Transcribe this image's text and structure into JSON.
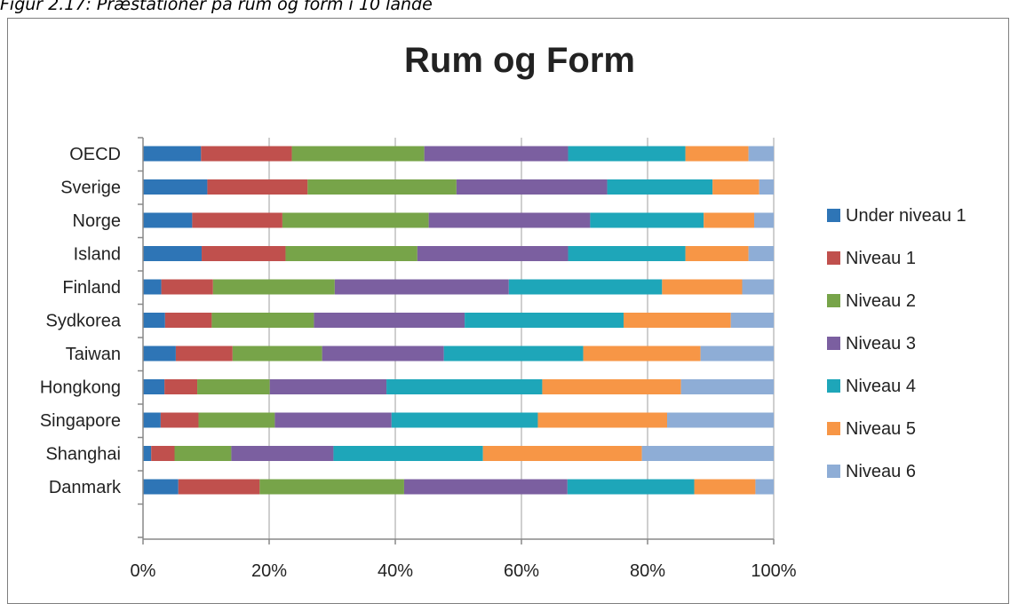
{
  "caption": "Figur 2.17: Præstationer på rum og form i 10 lande",
  "chart_data": {
    "type": "bar",
    "orientation": "horizontal",
    "stacked": "percent",
    "title": "Rum og Form",
    "categories": [
      "OECD",
      "Sverige",
      "Norge",
      "Island",
      "Finland",
      "Sydkorea",
      "Taiwan",
      "Hongkong",
      "Singapore",
      "Shanghai",
      "Danmark"
    ],
    "x_ticks": [
      "0%",
      "20%",
      "40%",
      "60%",
      "80%",
      "100%"
    ],
    "xlim": [
      0,
      100
    ],
    "grid": true,
    "legend_position": "right",
    "series": [
      {
        "name": "Under niveau 1",
        "color": "#2e75b6",
        "values": [
          9.2,
          10.2,
          7.8,
          9.3,
          2.9,
          3.5,
          5.2,
          3.4,
          2.8,
          1.3,
          5.6
        ]
      },
      {
        "name": "Niveau 1",
        "color": "#c0504d",
        "values": [
          14.4,
          15.9,
          14.3,
          13.3,
          8.2,
          7.4,
          9.0,
          5.2,
          6.0,
          3.7,
          12.9
        ]
      },
      {
        "name": "Niveau 2",
        "color": "#77a449",
        "values": [
          21.0,
          23.6,
          23.2,
          20.9,
          19.3,
          16.2,
          14.2,
          11.5,
          12.1,
          9.0,
          22.9
        ]
      },
      {
        "name": "Niveau 3",
        "color": "#7b5fa0",
        "values": [
          22.8,
          23.9,
          25.6,
          23.9,
          27.6,
          23.9,
          19.3,
          18.5,
          18.5,
          16.2,
          25.9
        ]
      },
      {
        "name": "Niveau 4",
        "color": "#1ea6b9",
        "values": [
          18.6,
          16.7,
          18.0,
          18.6,
          24.3,
          25.2,
          22.1,
          24.7,
          23.2,
          23.7,
          20.1
        ]
      },
      {
        "name": "Niveau 5",
        "color": "#f79646",
        "values": [
          10.0,
          7.4,
          8.0,
          10.0,
          12.7,
          17.0,
          18.6,
          22.0,
          20.5,
          25.2,
          9.7
        ]
      },
      {
        "name": "Niveau 6",
        "color": "#8eadd6",
        "values": [
          4.0,
          2.3,
          3.1,
          4.0,
          5.0,
          6.8,
          11.6,
          14.7,
          16.9,
          20.9,
          2.9
        ]
      }
    ]
  }
}
